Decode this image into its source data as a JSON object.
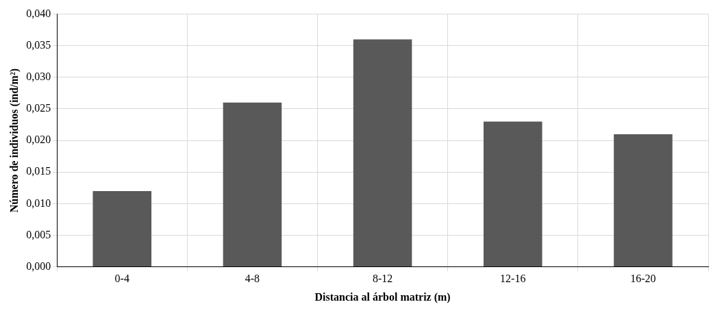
{
  "chart_data": {
    "type": "bar",
    "xlabel": "Distancia al árbol matriz (m)",
    "ylabel": "Número de individuos (ind/m²)",
    "categories": [
      "0-4",
      "4-8",
      "8-12",
      "12-16",
      "16-20"
    ],
    "values": [
      0.012,
      0.026,
      0.036,
      0.023,
      0.021
    ],
    "color": "#595959",
    "ylim": [
      0,
      0.04
    ],
    "yticks": [
      {
        "value": 0,
        "label": "0,000"
      },
      {
        "value": 0.005,
        "label": "0,005"
      },
      {
        "value": 0.01,
        "label": "0,010"
      },
      {
        "value": 0.015,
        "label": "0,015"
      },
      {
        "value": 0.02,
        "label": "0,020"
      },
      {
        "value": 0.025,
        "label": "0,025"
      },
      {
        "value": 0.03,
        "label": "0,030"
      },
      {
        "value": 0.035,
        "label": "0,035"
      },
      {
        "value": 0.04,
        "label": "0,040"
      }
    ],
    "grid": true
  }
}
